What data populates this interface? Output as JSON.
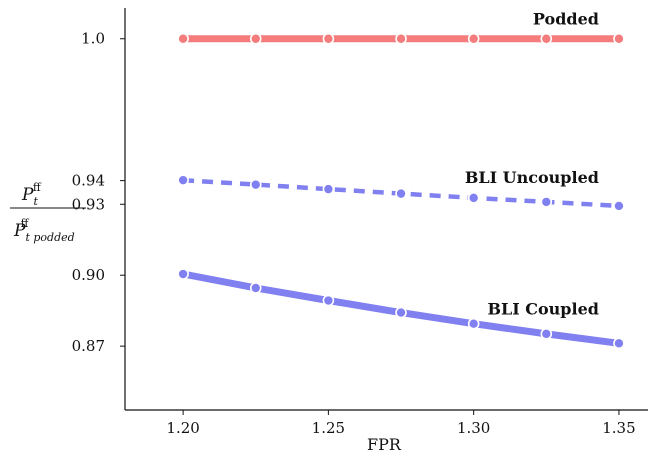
{
  "chart_data": {
    "type": "line",
    "xlabel": "FPR",
    "ylabel": {
      "numerator": "P",
      "numerator_sub": "t",
      "numerator_sup": "ff",
      "denominator": "P",
      "denominator_sub": "t podded",
      "denominator_sup": "ff"
    },
    "xlim": [
      1.18,
      1.36
    ],
    "ylim": [
      0.843,
      1.013
    ],
    "xticks": [
      1.2,
      1.25,
      1.3,
      1.35
    ],
    "xtick_labels": [
      "1.20",
      "1.25",
      "1.30",
      "1.35"
    ],
    "yticks": [
      0.87,
      0.9,
      0.93,
      0.94,
      1.0
    ],
    "ytick_labels": [
      "0.87",
      "0.90",
      "0.93",
      "0.94",
      "1.0"
    ],
    "grid": false,
    "x": [
      1.2,
      1.225,
      1.25,
      1.275,
      1.3,
      1.325,
      1.35
    ],
    "series": [
      {
        "name": "Podded",
        "color": "#f47c7c",
        "line_style": "solid",
        "values": [
          1.0,
          1.0,
          1.0,
          1.0,
          1.0,
          1.0,
          1.0
        ]
      },
      {
        "name": "BLI Uncoupled",
        "color": "#8080f0",
        "line_style": "dashed",
        "values": [
          0.9402,
          0.9383,
          0.9364,
          0.9345,
          0.9327,
          0.931,
          0.9293
        ]
      },
      {
        "name": "BLI Coupled",
        "color": "#8080f0",
        "line_style": "solid",
        "values": [
          0.9005,
          0.8946,
          0.8893,
          0.8842,
          0.8795,
          0.8752,
          0.8712
        ]
      }
    ]
  }
}
